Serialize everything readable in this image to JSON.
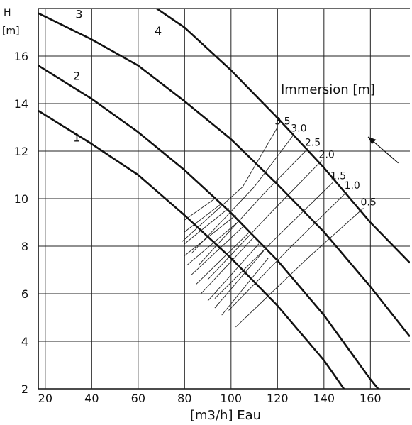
{
  "chart_data": {
    "type": "line",
    "title": "",
    "xlabel": "[m3/h] Eau",
    "ylabel_top": "H",
    "ylabel_unit": "[m]",
    "xlim": [
      17,
      177
    ],
    "ylim": [
      2,
      18
    ],
    "x_ticks": [
      20,
      40,
      60,
      80,
      100,
      120,
      140,
      160
    ],
    "y_ticks": [
      2,
      4,
      6,
      8,
      10,
      12,
      14,
      16
    ],
    "x_grid": [
      20,
      40,
      60,
      80,
      100,
      120,
      140,
      160
    ],
    "y_grid": [
      4,
      6,
      8,
      10,
      12,
      14,
      16
    ],
    "grid": true,
    "series": [
      {
        "name": "1",
        "points": [
          [
            17,
            13.7
          ],
          [
            40,
            12.3
          ],
          [
            60,
            11.0
          ],
          [
            80,
            9.3
          ],
          [
            100,
            7.5
          ],
          [
            120,
            5.5
          ],
          [
            140,
            3.2
          ],
          [
            150,
            1.8
          ]
        ]
      },
      {
        "name": "2",
        "points": [
          [
            17,
            15.6
          ],
          [
            40,
            14.2
          ],
          [
            60,
            12.8
          ],
          [
            80,
            11.2
          ],
          [
            100,
            9.4
          ],
          [
            120,
            7.4
          ],
          [
            140,
            5.1
          ],
          [
            160,
            2.4
          ],
          [
            165,
            1.8
          ]
        ]
      },
      {
        "name": "3",
        "points": [
          [
            17,
            17.8
          ],
          [
            40,
            16.7
          ],
          [
            60,
            15.6
          ],
          [
            80,
            14.1
          ],
          [
            100,
            12.5
          ],
          [
            120,
            10.6
          ],
          [
            140,
            8.6
          ],
          [
            160,
            6.3
          ],
          [
            177,
            4.2
          ]
        ]
      },
      {
        "name": "4",
        "points": [
          [
            68,
            18.0
          ],
          [
            80,
            17.2
          ],
          [
            100,
            15.4
          ],
          [
            120,
            13.4
          ],
          [
            140,
            11.3
          ],
          [
            160,
            9.0
          ],
          [
            177,
            7.3
          ]
        ]
      }
    ],
    "immersion": {
      "title": "Immersion [m]",
      "lines": [
        {
          "label": "3.5",
          "points": [
            [
              79,
              8.2
            ],
            [
              105,
              10.5
            ],
            [
              120,
              13.0
            ]
          ]
        },
        {
          "label": "3.0",
          "points": [
            [
              83,
              7.7
            ],
            [
              110,
              10.5
            ],
            [
              127,
              12.7
            ]
          ]
        },
        {
          "label": "2.5",
          "points": [
            [
              86,
              7.2
            ],
            [
              114,
              10.2
            ],
            [
              133,
              12.1
            ]
          ]
        },
        {
          "label": "2.0",
          "points": [
            [
              90,
              6.6
            ],
            [
              118,
              9.5
            ],
            [
              139,
              11.6
            ]
          ]
        },
        {
          "label": "1.5",
          "points": [
            [
              93,
              5.8
            ],
            [
              122,
              8.6
            ],
            [
              144,
              10.7
            ]
          ]
        },
        {
          "label": "1.0",
          "points": [
            [
              99,
              5.3
            ],
            [
              126,
              8.0
            ],
            [
              150,
              10.3
            ]
          ]
        },
        {
          "label": "0.5",
          "points": [
            [
              102,
              4.6
            ],
            [
              133,
              7.5
            ],
            [
              157,
              9.6
            ]
          ]
        }
      ],
      "hatch_x_range": [
        80,
        110
      ],
      "hatch_lines": [
        [
          [
            80,
            9.1
          ],
          [
            93,
            10.0
          ]
        ],
        [
          [
            80,
            8.6
          ],
          [
            96,
            9.8
          ]
        ],
        [
          [
            80,
            8.1
          ],
          [
            99,
            9.6
          ]
        ],
        [
          [
            80,
            7.6
          ],
          [
            102,
            9.3
          ]
        ],
        [
          [
            81,
            7.2
          ],
          [
            104,
            9.1
          ]
        ],
        [
          [
            83,
            6.8
          ],
          [
            106,
            8.9
          ]
        ],
        [
          [
            85,
            6.4
          ],
          [
            108,
            8.6
          ]
        ],
        [
          [
            87,
            6.0
          ],
          [
            110,
            8.4
          ]
        ],
        [
          [
            90,
            5.7
          ],
          [
            112,
            8.1
          ]
        ],
        [
          [
            93,
            5.4
          ],
          [
            114,
            7.8
          ]
        ],
        [
          [
            96,
            5.1
          ],
          [
            116,
            7.5
          ]
        ]
      ],
      "arrow": [
        [
          172,
          11.5
        ],
        [
          159,
          12.6
        ]
      ]
    }
  }
}
